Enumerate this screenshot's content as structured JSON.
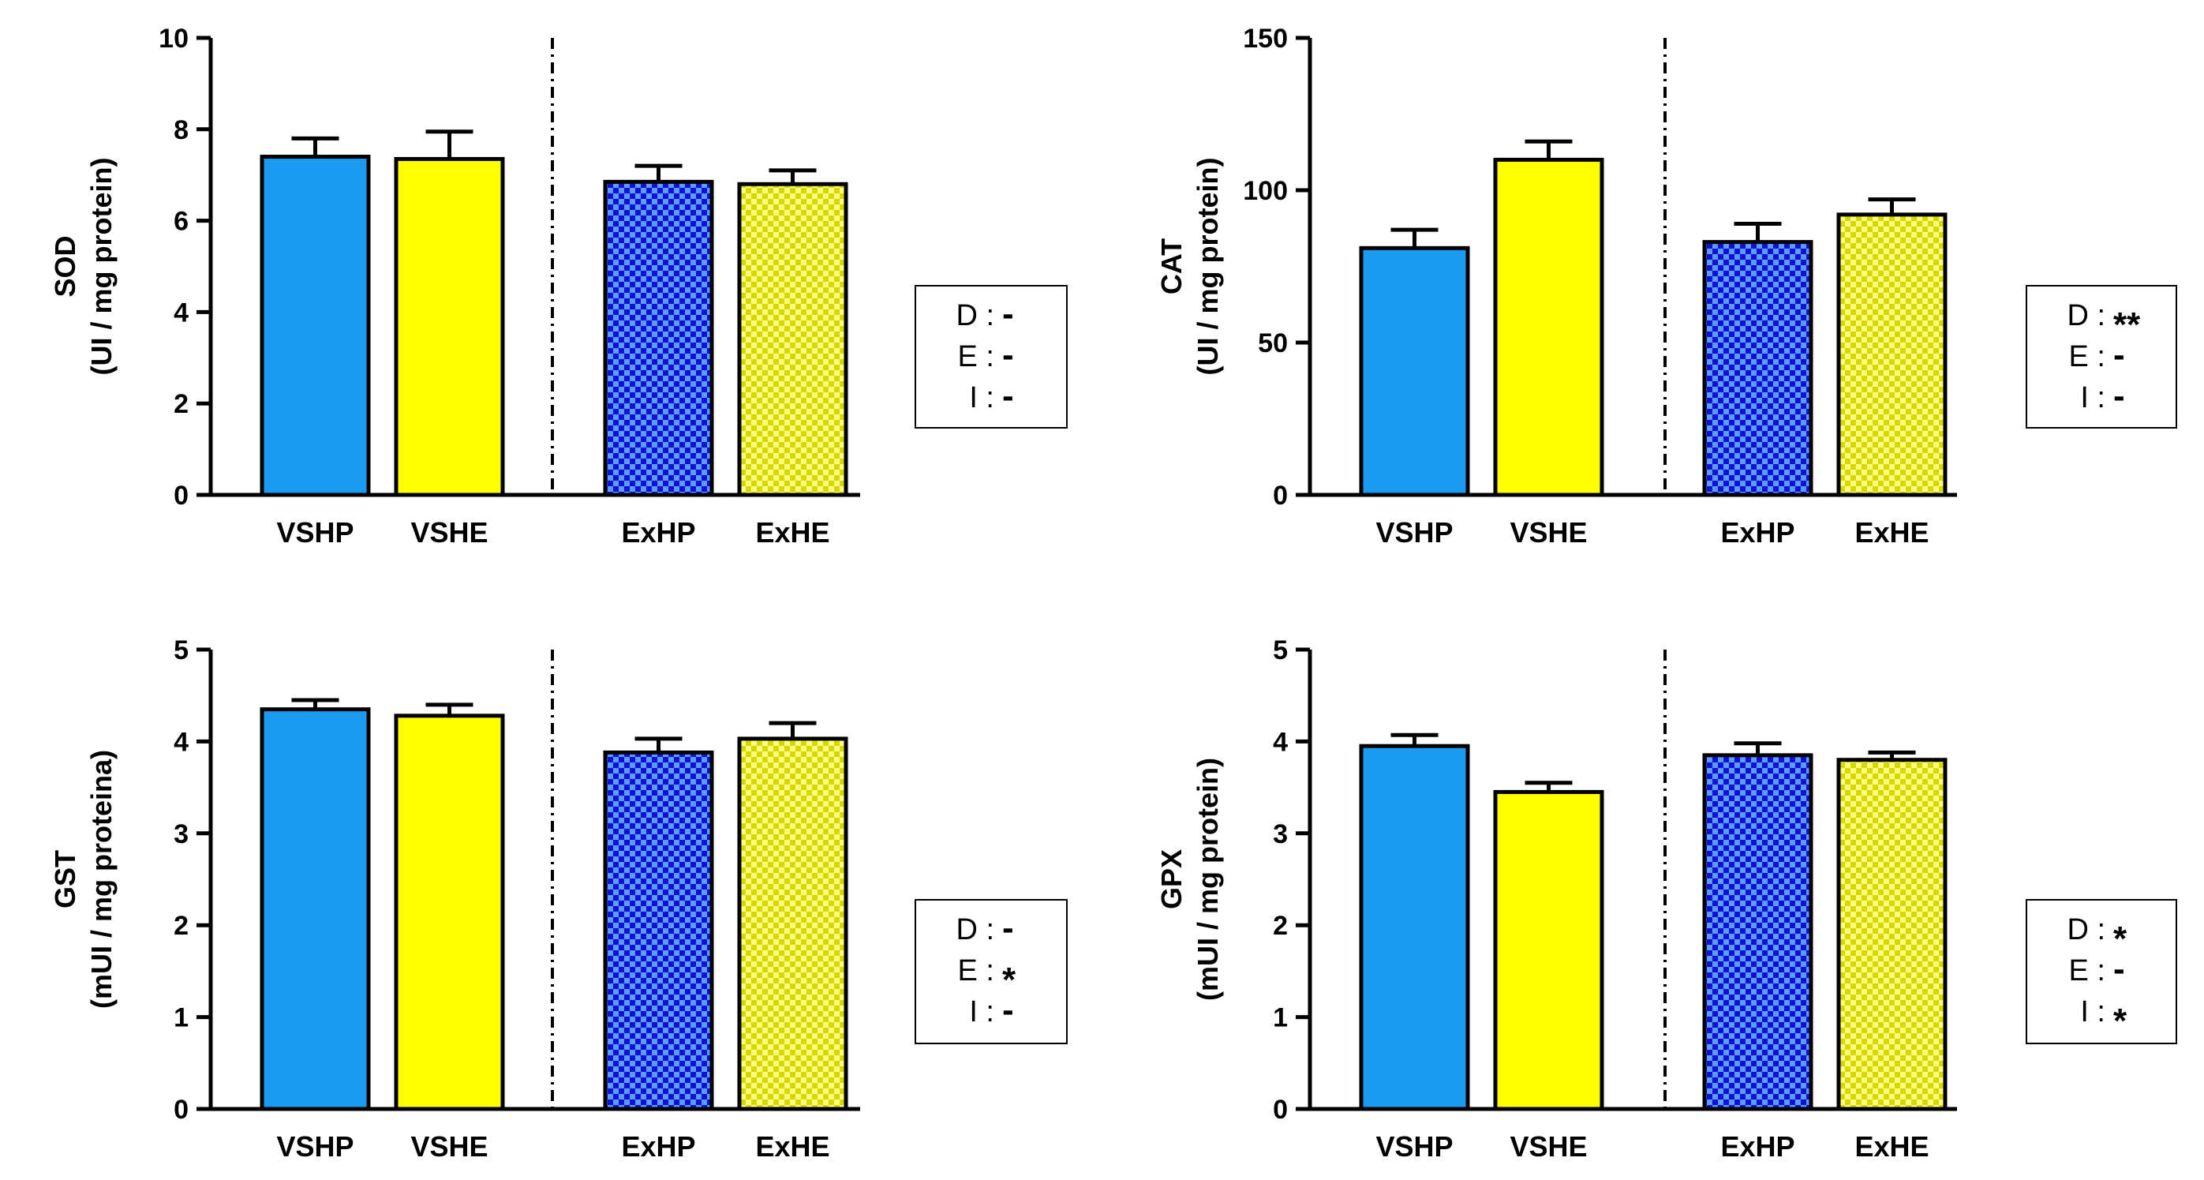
{
  "colors": {
    "blue": "#1a9bf0",
    "yellow": "#ffff00",
    "navy": "#1010d8",
    "olive_check": "#d8d800"
  },
  "groups": [
    "VSHP",
    "VSHE",
    "ExHP",
    "ExHE"
  ],
  "chart_data": [
    {
      "type": "bar",
      "ylabel_main": "SOD",
      "ylabel_unit": "(UI / mg protein)",
      "categories": [
        "VSHP",
        "VSHE",
        "ExHP",
        "ExHE"
      ],
      "values": [
        7.4,
        7.35,
        6.85,
        6.8
      ],
      "errors": [
        0.4,
        0.6,
        0.35,
        0.3
      ],
      "ylim": [
        0,
        10
      ],
      "yticks": [
        "0",
        "2",
        "4",
        "6",
        "8",
        "10"
      ],
      "stats": [
        {
          "label": "D :",
          "mark": "-"
        },
        {
          "label": "E :",
          "mark": "-"
        },
        {
          "label": "I :",
          "mark": "-"
        }
      ]
    },
    {
      "type": "bar",
      "ylabel_main": "CAT",
      "ylabel_unit": "(UI / mg protein)",
      "categories": [
        "VSHP",
        "VSHE",
        "ExHP",
        "ExHE"
      ],
      "values": [
        81,
        110,
        83,
        92
      ],
      "errors": [
        6,
        6,
        6,
        5
      ],
      "ylim": [
        0,
        150
      ],
      "yticks": [
        "0",
        "50",
        "100",
        "150"
      ],
      "stats": [
        {
          "label": "D :",
          "mark": "**"
        },
        {
          "label": "E :",
          "mark": "-"
        },
        {
          "label": "I :",
          "mark": "-"
        }
      ]
    },
    {
      "type": "bar",
      "ylabel_main": "GST",
      "ylabel_unit": "(mUI / mg proteina)",
      "categories": [
        "VSHP",
        "VSHE",
        "ExHP",
        "ExHE"
      ],
      "values": [
        4.35,
        4.28,
        3.88,
        4.03
      ],
      "errors": [
        0.1,
        0.12,
        0.15,
        0.17
      ],
      "ylim": [
        0,
        5
      ],
      "yticks": [
        "0",
        "1",
        "2",
        "3",
        "4",
        "5"
      ],
      "stats": [
        {
          "label": "D :",
          "mark": "-"
        },
        {
          "label": "E :",
          "mark": "*"
        },
        {
          "label": "I :",
          "mark": "-"
        }
      ]
    },
    {
      "type": "bar",
      "ylabel_main": "GPX",
      "ylabel_unit": "(mUI / mg protein)",
      "categories": [
        "VSHP",
        "VSHE",
        "ExHP",
        "ExHE"
      ],
      "values": [
        3.95,
        3.45,
        3.85,
        3.8
      ],
      "errors": [
        0.12,
        0.1,
        0.13,
        0.08
      ],
      "ylim": [
        0,
        5
      ],
      "yticks": [
        "0",
        "1",
        "2",
        "3",
        "4",
        "5"
      ],
      "stats": [
        {
          "label": "D :",
          "mark": "*"
        },
        {
          "label": "E :",
          "mark": "-"
        },
        {
          "label": "I :",
          "mark": "*"
        }
      ]
    }
  ]
}
